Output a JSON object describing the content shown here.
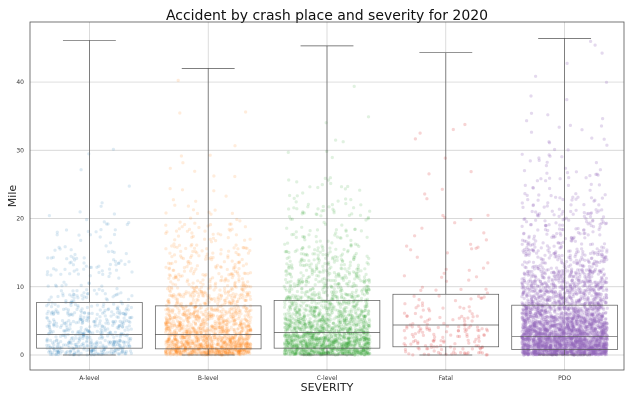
{
  "chart_data": {
    "type": "box+strip",
    "title": "Accident by crash place and severity for 2020",
    "xlabel": "SEVERITY",
    "ylabel": "Mile",
    "ylim": [
      -2.2,
      48.8
    ],
    "yticks": [
      0,
      10,
      20,
      30,
      40
    ],
    "grid": true,
    "categories": [
      "A-level",
      "B-level",
      "C-level",
      "Fatal",
      "PDO"
    ],
    "colors": [
      "#1f77b4",
      "#ff7f0e",
      "#2ca02c",
      "#d62728",
      "#9467bd"
    ],
    "boxes": [
      {
        "category": "A-level",
        "whisker_low": 0,
        "q1": 1.0,
        "median": 3.0,
        "q3": 7.7,
        "whisker_high": 46.1
      },
      {
        "category": "B-level",
        "whisker_low": 0,
        "q1": 0.9,
        "median": 3.0,
        "q3": 7.2,
        "whisker_high": 42.0
      },
      {
        "category": "C-level",
        "whisker_low": 0,
        "q1": 1.0,
        "median": 3.3,
        "q3": 8.0,
        "whisker_high": 45.3
      },
      {
        "category": "Fatal",
        "whisker_low": 0,
        "q1": 1.2,
        "median": 4.4,
        "q3": 8.9,
        "whisker_high": 44.3
      },
      {
        "category": "PDO",
        "whisker_low": 0,
        "q1": 0.8,
        "median": 2.7,
        "q3": 7.3,
        "whisker_high": 46.4
      }
    ],
    "strip_density": [
      {
        "category": "A-level",
        "relative_points": 600,
        "decay": 5.5,
        "alpha": 0.15
      },
      {
        "category": "B-level",
        "relative_points": 1600,
        "decay": 5.0,
        "alpha": 0.15
      },
      {
        "category": "C-level",
        "relative_points": 2000,
        "decay": 5.5,
        "alpha": 0.15
      },
      {
        "category": "Fatal",
        "relative_points": 200,
        "decay": 7.0,
        "alpha": 0.2
      },
      {
        "category": "PDO",
        "relative_points": 3200,
        "decay": 6.0,
        "alpha": 0.25
      }
    ]
  }
}
